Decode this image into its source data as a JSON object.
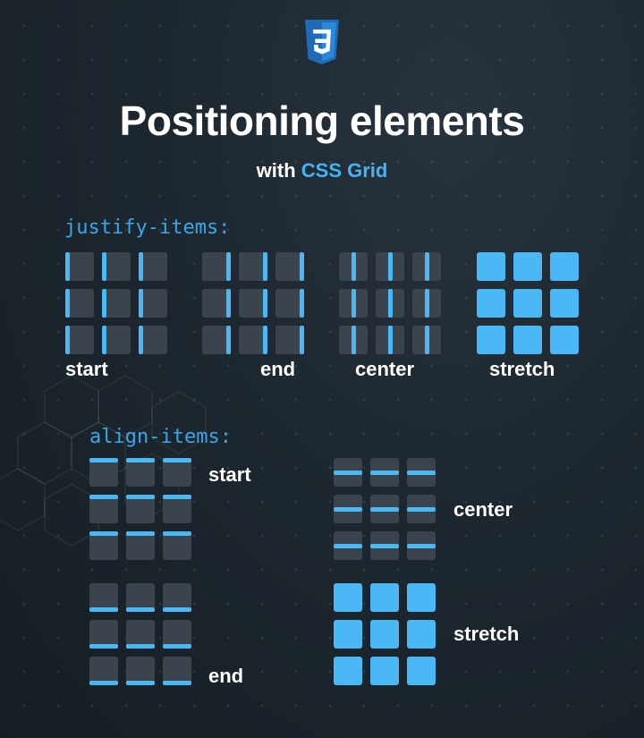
{
  "header": {
    "logo_icon": "css3-logo-icon",
    "title": "Positioning elements",
    "subtitle_prefix": "with",
    "subtitle_accent": "CSS Grid"
  },
  "justify_items": {
    "heading": "justify-items:",
    "variants": [
      {
        "key": "start",
        "label": "start"
      },
      {
        "key": "end",
        "label": "end"
      },
      {
        "key": "center",
        "label": "center"
      },
      {
        "key": "stretch",
        "label": "stretch"
      }
    ]
  },
  "align_items": {
    "heading": "align-items:",
    "variants": [
      {
        "key": "start",
        "label": "start"
      },
      {
        "key": "center",
        "label": "center"
      },
      {
        "key": "end",
        "label": "end"
      },
      {
        "key": "stretch",
        "label": "stretch"
      }
    ]
  },
  "colors": {
    "accent": "#42b4f4",
    "item": "#4ab8f5",
    "cell": "#3b444c",
    "background": "#1d272f",
    "text": "#ffffff"
  }
}
